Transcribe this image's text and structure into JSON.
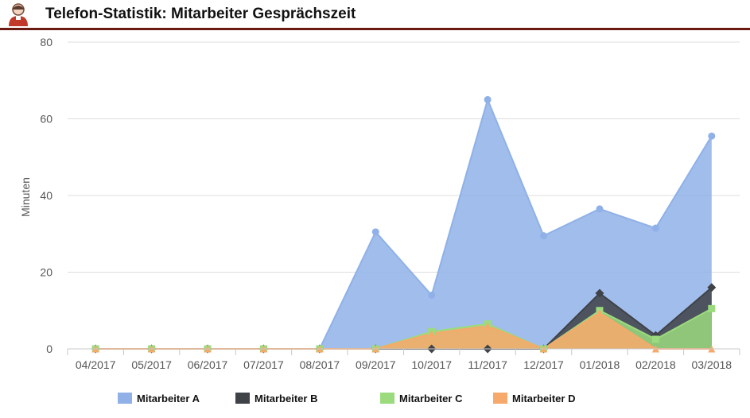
{
  "header": {
    "title": "Telefon-Statistik: Mitarbeiter Gesprächszeit",
    "icon": "user-avatar-icon"
  },
  "chart_data": {
    "type": "area",
    "title": "Telefon-Statistik: Mitarbeiter Gesprächszeit",
    "xlabel": "",
    "ylabel": "Minuten",
    "ylim": [
      0,
      80
    ],
    "yticks": [
      0,
      20,
      40,
      60,
      80
    ],
    "grid": true,
    "legend_position": "bottom",
    "categories": [
      "04/2017",
      "05/2017",
      "06/2017",
      "07/2017",
      "08/2017",
      "09/2017",
      "10/2017",
      "11/2017",
      "12/2017",
      "01/2018",
      "02/2018",
      "03/2018"
    ],
    "series": [
      {
        "name": "Mitarbeiter A",
        "color": "#8fb1e8",
        "marker": "circle",
        "values": [
          0,
          0,
          0,
          0,
          0,
          30.5,
          14,
          65,
          29.5,
          36.5,
          31.5,
          55.5
        ]
      },
      {
        "name": "Mitarbeiter B",
        "color": "#3f4247",
        "marker": "diamond",
        "values": [
          0,
          0,
          0,
          0,
          0,
          0,
          0,
          0,
          0,
          14.5,
          3.5,
          16
        ]
      },
      {
        "name": "Mitarbeiter C",
        "color": "#9bdb7e",
        "marker": "square",
        "values": [
          0,
          0,
          0,
          0,
          0,
          0,
          4.5,
          6.5,
          0,
          10,
          2.5,
          10.5
        ]
      },
      {
        "name": "Mitarbeiter D",
        "color": "#f7a96b",
        "marker": "triangle",
        "values": [
          0,
          0,
          0,
          0,
          0,
          0,
          4,
          6,
          0,
          9.5,
          0,
          0
        ]
      }
    ]
  }
}
